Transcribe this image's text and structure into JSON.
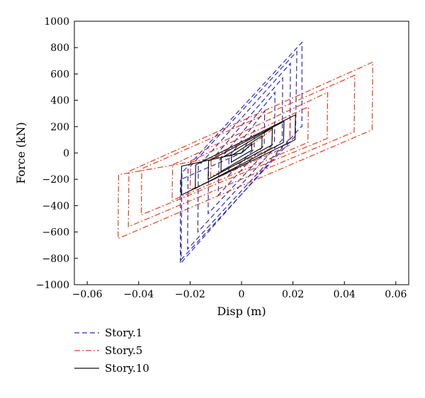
{
  "chart_data": {
    "type": "line",
    "title": "",
    "xlabel": "Disp (m)",
    "ylabel": "Force (kN)",
    "xlim": [
      -0.065,
      0.065
    ],
    "ylim": [
      -1000,
      1000
    ],
    "xticks": [
      -0.06,
      -0.04,
      -0.02,
      0,
      0.02,
      0.04,
      0.06
    ],
    "xtick_labels": [
      "−0.06",
      "−0.04",
      "−0.02",
      "0",
      "0.02",
      "0.04",
      "0.06"
    ],
    "yticks": [
      -1000,
      -800,
      -600,
      -400,
      -200,
      0,
      200,
      400,
      600,
      800,
      1000
    ],
    "ytick_labels": [
      "−1000",
      "−800",
      "−600",
      "−400",
      "−200",
      "0",
      "200",
      "400",
      "600",
      "800",
      "1000"
    ],
    "grid": false,
    "legend_position": "below-left",
    "series": [
      {
        "name": "Story.1",
        "color": "#2b2bbf",
        "dash": "dashed",
        "x": [
          0,
          0.005,
          0.0049,
          -0.005,
          -0.0049,
          0.009,
          0.0088,
          -0.009,
          -0.0088,
          0.013,
          0.0128,
          -0.013,
          -0.0128,
          0.016,
          0.0158,
          -0.017,
          -0.0168,
          0.019,
          0.0188,
          -0.021,
          -0.0208,
          0.0215,
          0.021,
          -0.0235,
          -0.0232,
          0.0235,
          0.0235,
          0.0235,
          0.0232,
          -0.0238,
          -0.0238,
          -0.0238,
          -0.0235,
          0.0
        ],
        "y": [
          0,
          175,
          30,
          -170,
          -30,
          320,
          60,
          -320,
          -60,
          460,
          80,
          -460,
          -80,
          570,
          100,
          -600,
          -100,
          680,
          110,
          -730,
          -120,
          770,
          130,
          -810,
          -150,
          840,
          840,
          200,
          200,
          -840,
          -840,
          -200,
          -200,
          0
        ]
      },
      {
        "name": "Story.5",
        "color": "#e0401a",
        "dash": "dashdot",
        "x": [
          0,
          0.012,
          0.0118,
          -0.012,
          -0.0118,
          0.019,
          0.0188,
          -0.02,
          -0.0198,
          0.026,
          0.0258,
          -0.027,
          -0.0268,
          0.0335,
          0.0333,
          -0.039,
          -0.0388,
          0.044,
          0.0438,
          -0.044,
          -0.0438,
          0.051,
          0.051,
          0.0508,
          -0.048,
          -0.048,
          -0.0478,
          0.0
        ],
        "y": [
          0,
          180,
          40,
          -180,
          -40,
          270,
          60,
          -280,
          -60,
          350,
          80,
          -360,
          -90,
          460,
          110,
          -470,
          -120,
          590,
          160,
          -560,
          -140,
          690,
          690,
          175,
          -650,
          -650,
          -165,
          0
        ]
      },
      {
        "name": "Story.10",
        "color": "#111111",
        "dash": "solid",
        "x": [
          0,
          0.004,
          0.0039,
          -0.004,
          -0.0039,
          0.008,
          0.0079,
          -0.008,
          -0.0079,
          0.012,
          0.0118,
          -0.013,
          -0.0128,
          0.0165,
          0.0163,
          -0.018,
          -0.0178,
          0.021,
          0.021,
          0.0208,
          -0.0235,
          -0.0235,
          -0.0233,
          0.0
        ],
        "y": [
          0,
          70,
          20,
          -70,
          -20,
          130,
          40,
          -140,
          -40,
          190,
          60,
          -200,
          -60,
          240,
          80,
          -270,
          -90,
          290,
          290,
          100,
          -320,
          -320,
          -100,
          0
        ]
      }
    ]
  }
}
